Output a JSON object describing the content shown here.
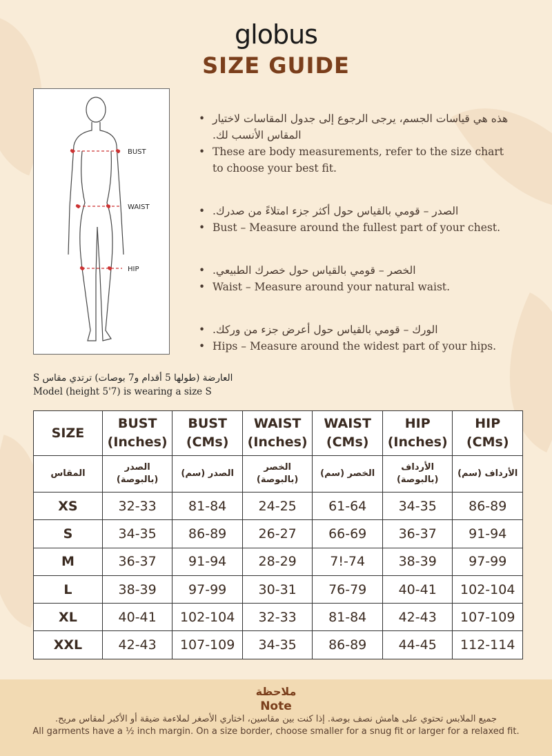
{
  "brand": "globus",
  "title": "SIZE GUIDE",
  "figure": {
    "labels": [
      "BUST",
      "WAIST",
      "HIP"
    ]
  },
  "bullets": [
    {
      "ar": "هذه هي قياسات الجسم، يرجى الرجوع إلى جدول المقاسات لاختيار المقاس الأنسب لك.",
      "en": "These are body measurements, refer to the size chart to choose your best fit."
    },
    {
      "ar": "الصدر – قومي بالقياس حول أكثر جزء امتلاءً من صدرك.",
      "en": "Bust – Measure around the fullest part of your chest."
    },
    {
      "ar": "الخصر – قومي بالقياس حول خصرك الطبيعي.",
      "en": "Waist – Measure around your natural waist."
    },
    {
      "ar": "الورك – قومي بالقياس حول أعرض جزء من وركك.",
      "en": "Hips – Measure around the widest part of your hips."
    }
  ],
  "model": {
    "ar": "العارضة (طولها 5 أقدام و7 بوصات) ترتدي مقاس S",
    "en": "Model (height 5'7) is wearing a size S"
  },
  "table": {
    "headers": [
      "SIZE",
      "BUST (Inches)",
      "BUST (CMs)",
      "WAIST (Inches)",
      "WAIST (CMs)",
      "HIP (Inches)",
      "HIP (CMs)"
    ],
    "headers_ar": [
      "المقاس",
      "الصدر (بالبوصة)",
      "الصدر (سم)",
      "الخصر (بالبوصة)",
      "الخصر (سم)",
      "الأرداف (بالبوصة)",
      "الأرداف (سم)"
    ],
    "rows": [
      [
        "XS",
        "32-33",
        "81-84",
        "24-25",
        "61-64",
        "34-35",
        "86-89"
      ],
      [
        "S",
        "34-35",
        "86-89",
        "26-27",
        "66-69",
        "36-37",
        "91-94"
      ],
      [
        "M",
        "36-37",
        "91-94",
        "28-29",
        "7!-74",
        "38-39",
        "97-99"
      ],
      [
        "L",
        "38-39",
        "97-99",
        "30-31",
        "76-79",
        "40-41",
        "102-104"
      ],
      [
        "XL",
        "40-41",
        "102-104",
        "32-33",
        "81-84",
        "42-43",
        "107-109"
      ],
      [
        "XXL",
        "42-43",
        "107-109",
        "34-35",
        "86-89",
        "44-45",
        "112-114"
      ]
    ]
  },
  "note": {
    "title_ar": "ملاحظة",
    "title": "Note",
    "text_ar": "جميع الملابس تحتوي على هامش نصف بوصة. إذا كنت بين مقاسين، اختاري الأصغر لملاءمة ضيقة أو الأكبر لمقاس مريح.",
    "text": "All garments have a ½ inch margin. On a size border, choose smaller for a snug fit or larger for a relaxed fit."
  }
}
